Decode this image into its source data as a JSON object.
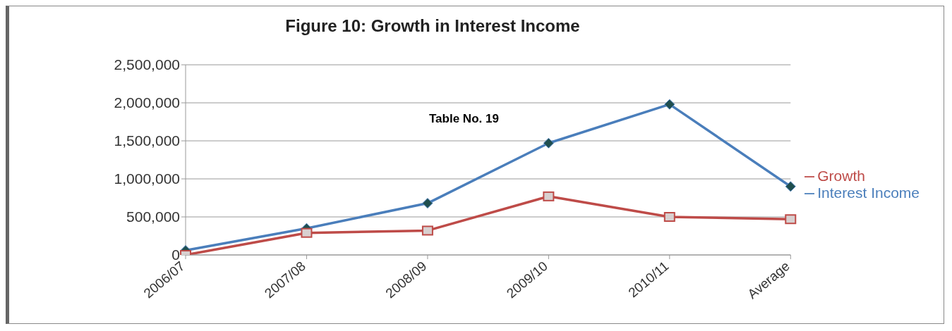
{
  "chart_data": {
    "type": "line",
    "title": "Figure  10: Growth in Interest Income",
    "categories": [
      "2006/07",
      "2007/08",
      "2008/09",
      "2009/10",
      "2010/11",
      "Average"
    ],
    "series": [
      {
        "name": "Interest Income",
        "color": "#4a7ebb",
        "marker": "diamond",
        "values": [
          60000,
          350000,
          680000,
          1470000,
          1980000,
          900000
        ]
      },
      {
        "name": "Growth",
        "color": "#be4b48",
        "marker": "square",
        "values": [
          0,
          290000,
          320000,
          770000,
          500000,
          470000
        ]
      }
    ],
    "ylim": [
      0,
      2500000
    ],
    "yticks": [
      {
        "value": 0,
        "label": "0"
      },
      {
        "value": 500000,
        "label": "500,000"
      },
      {
        "value": 1000000,
        "label": "1,000,000"
      },
      {
        "value": 1500000,
        "label": "1,500,000"
      },
      {
        "value": 2000000,
        "label": "2,000,000"
      },
      {
        "value": 2500000,
        "label": "2,500,000"
      }
    ],
    "grid": "y",
    "legend": "right",
    "annotations": [
      "Table No. 19"
    ]
  }
}
